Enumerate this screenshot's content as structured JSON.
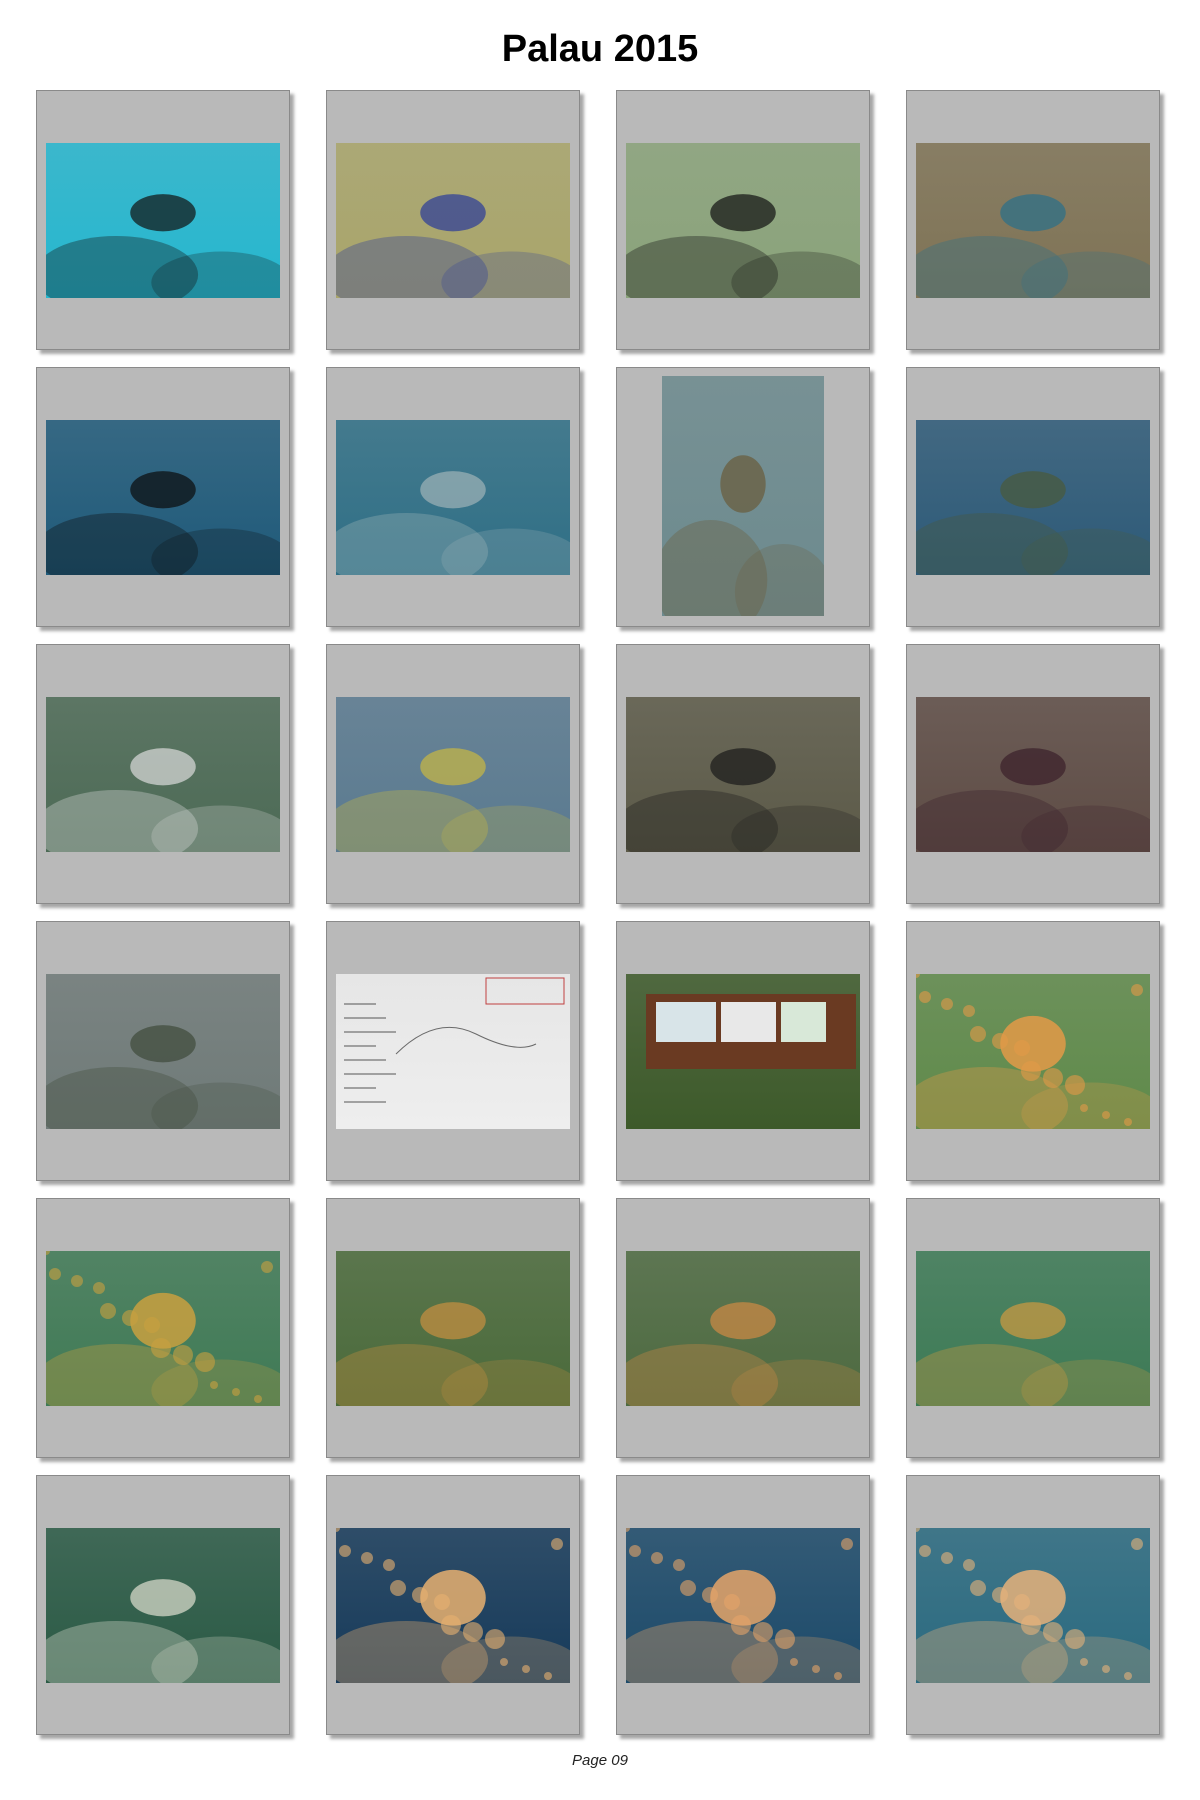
{
  "page": {
    "title": "Palau 2015",
    "footer": "Page 09"
  },
  "photos": [
    {
      "subject": "diver-over-reef",
      "bg": "#25b7cf",
      "accent": "#111111"
    },
    {
      "subject": "coral-worms",
      "bg": "#a9a56a",
      "accent": "#2a3a9a"
    },
    {
      "subject": "bannerfish",
      "bg": "#8aa37a",
      "accent": "#111111"
    },
    {
      "subject": "reef-fish",
      "bg": "#7f7355",
      "accent": "#2a6f8a"
    },
    {
      "subject": "diver-with-coral",
      "bg": "#1f5a7a",
      "accent": "#0c0c0c"
    },
    {
      "subject": "reef-wall-shark",
      "bg": "#2f6f86",
      "accent": "#9fb4b8"
    },
    {
      "subject": "coral-pillar",
      "bg": "#6c8a8e",
      "accent": "#6a5b3a"
    },
    {
      "subject": "lettuce-coral",
      "bg": "#2d5a78",
      "accent": "#4a5a3a"
    },
    {
      "subject": "fish-school",
      "bg": "#4c6a55",
      "accent": "#dcdcdc"
    },
    {
      "subject": "angelfish",
      "bg": "#5a7a90",
      "accent": "#c9b842"
    },
    {
      "subject": "diver-clam",
      "bg": "#5c5a48",
      "accent": "#1a1a1a"
    },
    {
      "subject": "giant-clam",
      "bg": "#5e4c45",
      "accent": "#3a1f2a"
    },
    {
      "subject": "turtle-reef",
      "bg": "#6f7a78",
      "accent": "#3f4a3a"
    },
    {
      "subject": "whiteboard",
      "bg": "#eeeeee",
      "accent": "#c04040"
    },
    {
      "subject": "jellyfish-lake-sign",
      "bg": "#3d5a2a",
      "accent": "#6a3a22"
    },
    {
      "subject": "jellyfish-swimmer",
      "bg": "#5f8a4a",
      "accent": "#e39a48"
    },
    {
      "subject": "snorkeler-jelly",
      "bg": "#3f7a55",
      "accent": "#c9a040"
    },
    {
      "subject": "snorkeler-jellies",
      "bg": "#4a6a3a",
      "accent": "#c99040"
    },
    {
      "subject": "snorkeler-camera",
      "bg": "#4d6a40",
      "accent": "#d08a45"
    },
    {
      "subject": "snorkeler-arms",
      "bg": "#3c7a55",
      "accent": "#d09a40"
    },
    {
      "subject": "snorkeler-surface",
      "bg": "#2a5a45",
      "accent": "#e0e0d0"
    },
    {
      "subject": "jellyfish-closeup",
      "bg": "#163a5a",
      "accent": "#e8b070"
    },
    {
      "subject": "jellyfish-group",
      "bg": "#1c4a6a",
      "accent": "#e5a468"
    },
    {
      "subject": "jellyfish-field",
      "bg": "#2a6a80",
      "accent": "#e6b27a"
    }
  ]
}
